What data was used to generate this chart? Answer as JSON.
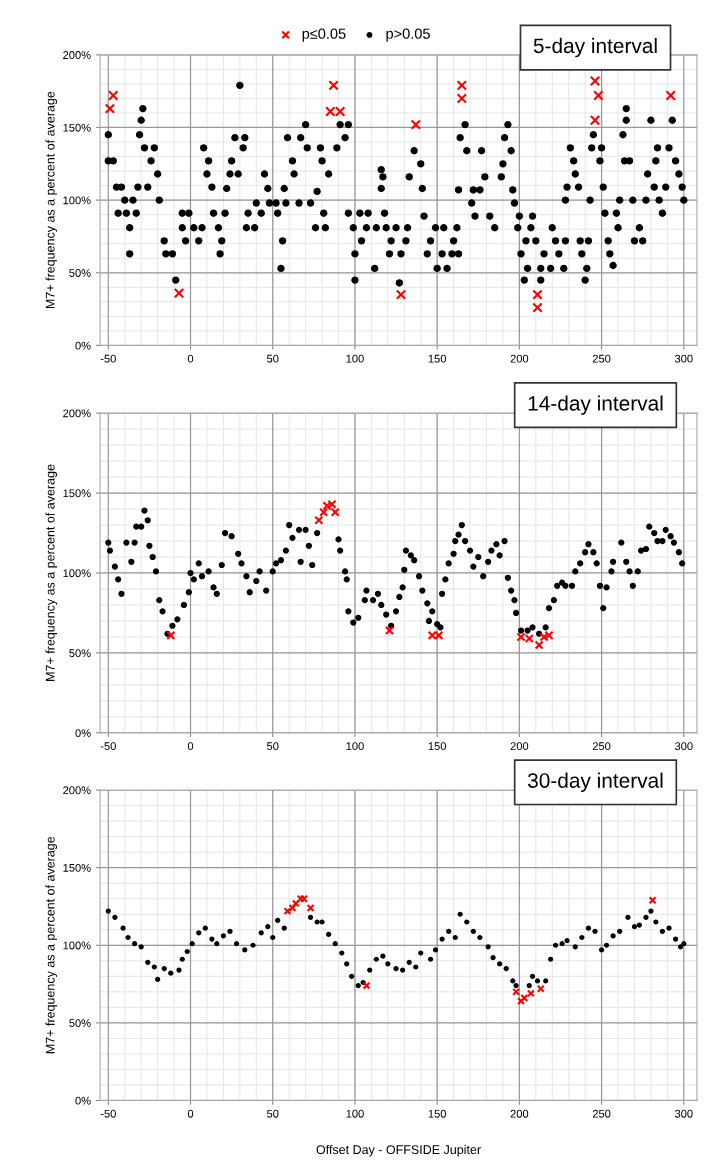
{
  "chart_data": [
    {
      "type": "scatter",
      "title": "5-day interval",
      "ylabel": "M7+ frequency as a percent of average",
      "xlim": [
        -55,
        308
      ],
      "ylim": [
        0,
        200
      ],
      "xticks": [
        -50,
        0,
        50,
        100,
        150,
        200,
        250,
        300
      ],
      "yticks": [
        {
          "value": 0,
          "label": "0%"
        },
        {
          "value": 50,
          "label": "50%"
        },
        {
          "value": 100,
          "label": "100%"
        },
        {
          "value": 150,
          "label": "150%"
        },
        {
          "value": 200,
          "label": "200%"
        }
      ],
      "grid": true,
      "legend": "top",
      "series": [
        {
          "name": "p≤0.05",
          "color": "#ff0000",
          "marker": "cross",
          "x": [
            -47,
            -49,
            -7,
            87,
            85,
            91,
            137,
            128,
            165,
            165,
            211,
            211,
            246,
            248,
            246,
            292
          ],
          "values": [
            172,
            163,
            36,
            179,
            161,
            161,
            152,
            35,
            179,
            170,
            35,
            26,
            182,
            172,
            155,
            172
          ]
        },
        {
          "name": "p>0.05",
          "color": "#000000",
          "marker": "circle",
          "x": [
            -50,
            -50,
            -47,
            -45,
            -44,
            -42,
            -40,
            -39,
            -37,
            -37,
            -35,
            -33,
            -32,
            -31,
            -30,
            -29,
            -28,
            -26,
            -24,
            -22,
            -20,
            -19,
            -16,
            -15,
            -11,
            -9,
            -5,
            -5,
            -3,
            -1,
            2,
            5,
            7,
            8,
            10,
            11,
            13,
            14,
            17,
            18,
            19,
            21,
            22,
            24,
            25,
            27,
            30,
            29,
            32,
            33,
            34,
            35,
            39,
            40,
            43,
            45,
            47,
            48,
            52,
            53,
            55,
            56,
            57,
            58,
            59,
            62,
            63,
            66,
            67,
            70,
            71,
            73,
            76,
            77,
            79,
            80,
            84,
            82,
            81,
            89,
            91,
            94,
            96,
            96,
            99,
            100,
            100,
            103,
            104,
            107,
            108,
            112,
            113,
            116,
            116,
            117,
            118,
            119,
            121,
            122,
            125,
            127,
            128,
            131,
            132,
            133,
            136,
            140,
            141,
            142,
            144,
            146,
            149,
            150,
            153,
            154,
            156,
            159,
            160,
            162,
            163,
            163,
            164,
            167,
            168,
            171,
            172,
            173,
            176,
            177,
            179,
            182,
            185,
            189,
            190,
            191,
            193,
            195,
            196,
            197,
            199,
            200,
            201,
            203,
            204,
            205,
            207,
            208,
            210,
            213,
            213,
            215,
            219,
            220,
            222,
            224,
            227,
            228,
            228,
            229,
            231,
            233,
            234,
            236,
            237,
            238,
            240,
            241,
            242,
            243,
            244,
            245,
            249,
            250,
            251,
            252,
            254,
            255,
            257,
            259,
            260,
            261,
            263,
            264,
            265,
            265,
            267,
            269,
            270,
            273,
            275,
            277,
            278,
            280,
            282,
            283,
            284,
            285,
            287,
            289,
            291,
            293,
            295,
            297,
            299,
            300
          ],
          "values": [
            127,
            145,
            127,
            109,
            91,
            109,
            100,
            91,
            63,
            81,
            100,
            91,
            109,
            145,
            155,
            163,
            136,
            109,
            127,
            136,
            118,
            100,
            72,
            63,
            63,
            45,
            81,
            91,
            72,
            91,
            81,
            72,
            81,
            136,
            118,
            127,
            109,
            91,
            81,
            63,
            72,
            91,
            108,
            118,
            127,
            143,
            179,
            118,
            136,
            143,
            81,
            91,
            81,
            98,
            91,
            118,
            108,
            98,
            98,
            91,
            53,
            72,
            108,
            98,
            143,
            127,
            118,
            98,
            143,
            152,
            136,
            98,
            81,
            106,
            136,
            127,
            118,
            81,
            91,
            136,
            152,
            143,
            152,
            91,
            81,
            45,
            63,
            91,
            72,
            81,
            91,
            53,
            81,
            121,
            108,
            116,
            91,
            81,
            63,
            72,
            81,
            43,
            63,
            72,
            81,
            116,
            134,
            125,
            108,
            89,
            63,
            72,
            81,
            53,
            63,
            81,
            53,
            63,
            72,
            81,
            63,
            107,
            143,
            152,
            134,
            98,
            107,
            89,
            107,
            134,
            116,
            89,
            81,
            116,
            125,
            143,
            152,
            134,
            107,
            98,
            81,
            89,
            63,
            45,
            72,
            53,
            81,
            89,
            72,
            45,
            53,
            63,
            53,
            81,
            72,
            63,
            53,
            72,
            100,
            109,
            136,
            127,
            118,
            109,
            72,
            63,
            45,
            53,
            72,
            100,
            136,
            145,
            127,
            136,
            109,
            91,
            72,
            63,
            55,
            91,
            81,
            100,
            145,
            127,
            163,
            155,
            127,
            100,
            72,
            81,
            72,
            100,
            118,
            155,
            109,
            127,
            136,
            100,
            91,
            109,
            136,
            155,
            127,
            118,
            109,
            100
          ]
        }
      ]
    },
    {
      "type": "scatter",
      "title": "14-day interval",
      "ylabel": "M7+ frequency as a percent of average",
      "xlim": [
        -55,
        308
      ],
      "ylim": [
        0,
        200
      ],
      "xticks": [
        -50,
        0,
        50,
        100,
        150,
        200,
        250,
        300
      ],
      "yticks": [
        {
          "value": 0,
          "label": "0%"
        },
        {
          "value": 50,
          "label": "50%"
        },
        {
          "value": 100,
          "label": "100%"
        },
        {
          "value": 150,
          "label": "150%"
        },
        {
          "value": 200,
          "label": "200%"
        }
      ],
      "grid": true,
      "series": [
        {
          "color": "#ff0000",
          "marker": "cross",
          "x": [
            -12,
            78,
            81,
            83,
            86,
            88,
            121,
            147,
            151,
            201,
            206,
            212,
            215,
            218
          ],
          "values": [
            61,
            133,
            138,
            142,
            143,
            138,
            64,
            61,
            61,
            60,
            59,
            55,
            60,
            61
          ]
        },
        {
          "color": "#000000",
          "marker": "circle",
          "x": [
            -50,
            -49,
            -46,
            -44,
            -42,
            -39,
            -36,
            -34,
            -33,
            -30,
            -28,
            -26,
            -25,
            -23,
            -21,
            -19,
            -17,
            -14,
            -11,
            -8,
            -4,
            -1,
            0,
            2,
            5,
            7,
            11,
            14,
            16,
            19,
            21,
            25,
            29,
            31,
            34,
            36,
            40,
            42,
            46,
            50,
            52,
            55,
            58,
            60,
            62,
            66,
            67,
            70,
            72,
            74,
            77,
            90,
            91,
            94,
            95,
            96,
            99,
            102,
            106,
            107,
            111,
            114,
            116,
            119,
            122,
            125,
            127,
            129,
            130,
            131,
            134,
            136,
            139,
            141,
            144,
            145,
            147,
            150,
            152,
            153,
            155,
            157,
            160,
            161,
            163,
            165,
            167,
            170,
            172,
            175,
            178,
            181,
            183,
            186,
            188,
            191,
            193,
            195,
            197,
            198,
            201,
            205,
            208,
            212,
            216,
            218,
            221,
            223,
            226,
            228,
            232,
            234,
            237,
            240,
            242,
            245,
            247,
            249,
            251,
            253,
            256,
            257,
            262,
            265,
            267,
            269,
            272,
            274,
            277,
            279,
            282,
            284,
            287,
            289,
            292,
            294,
            297,
            299
          ],
          "values": [
            119,
            114,
            104,
            96,
            87,
            119,
            107,
            119,
            129,
            129,
            139,
            133,
            117,
            110,
            101,
            83,
            76,
            62,
            67,
            71,
            80,
            88,
            100,
            96,
            106,
            98,
            101,
            91,
            87,
            105,
            125,
            123,
            112,
            106,
            98,
            88,
            95,
            101,
            89,
            101,
            106,
            108,
            114,
            130,
            122,
            127,
            107,
            127,
            117,
            105,
            125,
            121,
            114,
            101,
            96,
            76,
            69,
            72,
            83,
            89,
            83,
            87,
            80,
            74,
            67,
            76,
            85,
            91,
            102,
            114,
            111,
            108,
            98,
            89,
            81,
            70,
            76,
            68,
            66,
            87,
            96,
            106,
            112,
            120,
            124,
            130,
            120,
            114,
            104,
            110,
            98,
            107,
            114,
            118,
            111,
            120,
            97,
            89,
            83,
            75,
            64,
            64,
            66,
            62,
            66,
            78,
            83,
            92,
            94,
            92,
            92,
            101,
            106,
            113,
            118,
            113,
            106,
            92,
            78,
            91,
            101,
            107,
            119,
            107,
            101,
            92,
            101,
            114,
            115,
            129,
            125,
            120,
            120,
            127,
            123,
            119,
            113,
            106
          ]
        }
      ]
    },
    {
      "type": "scatter",
      "title": "30-day interval",
      "ylabel": "M7+ frequency as a percent of average",
      "xlabel": "Offset Day - OFFSIDE Jupiter",
      "xlim": [
        -55,
        308
      ],
      "ylim": [
        0,
        200
      ],
      "xticks": [
        -50,
        0,
        50,
        100,
        150,
        200,
        250,
        300
      ],
      "yticks": [
        {
          "value": 0,
          "label": "0%"
        },
        {
          "value": 50,
          "label": "50%"
        },
        {
          "value": 100,
          "label": "100%"
        },
        {
          "value": 150,
          "label": "150%"
        },
        {
          "value": 200,
          "label": "200%"
        }
      ],
      "grid": true,
      "series": [
        {
          "color": "#ff0000",
          "marker": "cross",
          "x": [
            59,
            62,
            64,
            67,
            69,
            73,
            107,
            198,
            201,
            203,
            207,
            213,
            281
          ],
          "values": [
            122,
            124,
            127,
            130,
            130,
            124,
            74,
            70,
            64,
            66,
            69,
            72,
            129
          ]
        },
        {
          "color": "#000000",
          "marker": "circle",
          "x": [
            -50,
            -46,
            -41,
            -38,
            -34,
            -30,
            -26,
            -22,
            -20,
            -16,
            -12,
            -7,
            -5,
            -2,
            1,
            5,
            9,
            13,
            16,
            20,
            24,
            28,
            33,
            38,
            43,
            47,
            50,
            53,
            57,
            73,
            77,
            80,
            84,
            88,
            92,
            95,
            98,
            102,
            105,
            109,
            113,
            117,
            120,
            125,
            129,
            133,
            137,
            140,
            146,
            149,
            153,
            157,
            161,
            164,
            168,
            172,
            176,
            181,
            184,
            188,
            192,
            196,
            198,
            206,
            208,
            211,
            216,
            219,
            222,
            226,
            229,
            234,
            238,
            242,
            246,
            250,
            253,
            257,
            261,
            266,
            270,
            273,
            277,
            280,
            283,
            287,
            291,
            295,
            298,
            300
          ],
          "values": [
            122,
            118,
            111,
            105,
            101,
            99,
            89,
            86,
            78,
            85,
            82,
            84,
            91,
            96,
            101,
            108,
            111,
            104,
            101,
            106,
            109,
            101,
            97,
            100,
            108,
            112,
            105,
            116,
            111,
            118,
            115,
            115,
            107,
            101,
            95,
            88,
            80,
            74,
            76,
            84,
            91,
            93,
            88,
            85,
            84,
            89,
            86,
            95,
            91,
            97,
            104,
            109,
            105,
            120,
            115,
            109,
            105,
            99,
            92,
            88,
            85,
            77,
            74,
            74,
            80,
            77,
            77,
            91,
            100,
            101,
            103,
            99,
            105,
            111,
            109,
            97,
            100,
            106,
            109,
            118,
            112,
            113,
            118,
            122,
            115,
            109,
            111,
            104,
            99,
            101
          ]
        }
      ]
    }
  ]
}
